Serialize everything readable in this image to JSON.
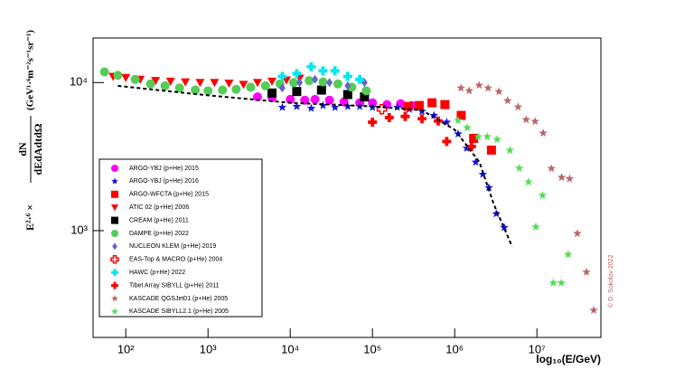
{
  "chart_data": {
    "type": "scatter",
    "xlabel": "log₁₀(E/GeV)",
    "ylabel": {
      "prefix": "E²·⁶ ×",
      "numerator": "dN",
      "denominator": "dEdAdtdΩ",
      "units": "(GeV¹·⁶m⁻²s⁻¹sr⁻¹)"
    },
    "watermark": "© D. Sokolov 2022",
    "log_x": true,
    "log_y": true,
    "xlim": [
      40,
      60000000
    ],
    "ylim": [
      190,
      20000
    ],
    "xticks": [
      {
        "value": 100,
        "label": "10²"
      },
      {
        "value": 1000,
        "label": "10³"
      },
      {
        "value": 10000,
        "label": "10⁴"
      },
      {
        "value": 100000,
        "label": "10⁵"
      },
      {
        "value": 1000000,
        "label": "10⁶"
      },
      {
        "value": 10000000,
        "label": "10⁷"
      }
    ],
    "yticks": [
      {
        "value": 1000,
        "label": "10³"
      },
      {
        "value": 10000,
        "label": "10⁴"
      }
    ],
    "legend": "lower-left",
    "series": [
      {
        "name": "ARGO-YBJ (p+He) 2015",
        "color": "#ff00ff",
        "marker": "circle",
        "x": [
          4000,
          6000,
          10000,
          15000,
          20000,
          30000,
          45000,
          70000,
          100000,
          150000,
          220000,
          300000
        ],
        "values": [
          8000,
          7900,
          7700,
          7600,
          7700,
          7600,
          7400,
          7300,
          7300,
          7100,
          7200,
          7000
        ]
      },
      {
        "name": "ARGO-YBJ (p+He) 2016",
        "color": "#1010e0",
        "marker": "star",
        "x": [
          8000,
          12000,
          18000,
          25000,
          35000,
          50000,
          70000,
          100000,
          140000,
          200000,
          280000,
          400000,
          560000,
          800000,
          1100000,
          1400000,
          1800000,
          2200000,
          2600000,
          3200000,
          4000000
        ],
        "values": [
          6800,
          6900,
          6700,
          7000,
          6800,
          6900,
          6900,
          6800,
          6700,
          6800,
          6600,
          6400,
          6000,
          5400,
          4500,
          3600,
          2900,
          2400,
          1950,
          1300,
          1050
        ]
      },
      {
        "name": "ARGO-WFCTA (p+He) 2015",
        "color": "#ff0000",
        "marker": "square",
        "x": [
          270000,
          370000,
          530000,
          760000,
          1200000,
          1700000,
          2800000
        ],
        "values": [
          6900,
          7000,
          7300,
          7100,
          6000,
          4200,
          3500
        ]
      },
      {
        "name": "ATIC 02 (p+He) 2006",
        "color": "#ff0000",
        "marker": "triangle-down",
        "x": [
          70,
          100,
          150,
          230,
          350,
          530,
          800,
          1200,
          1800,
          2700,
          4000,
          6000,
          9000,
          13000
        ],
        "values": [
          11000,
          10800,
          10500,
          10300,
          10200,
          10100,
          10000,
          10000,
          9900,
          9700,
          10000,
          10200,
          10400,
          10700
        ]
      },
      {
        "name": "CREAM (p+He) 2011",
        "color": "#000000",
        "marker": "square",
        "x": [
          6000,
          12000,
          24000,
          50000,
          80000
        ],
        "values": [
          8500,
          8700,
          8900,
          8300,
          8000
        ]
      },
      {
        "name": "DAMPE (p+He) 2022",
        "color": "#55cc55",
        "marker": "circle",
        "x": [
          55,
          80,
          130,
          200,
          300,
          450,
          700,
          1000,
          1500,
          2200,
          3300,
          5000,
          7500,
          11000,
          17000,
          25000,
          38000,
          56000,
          84000
        ],
        "values": [
          11800,
          11200,
          10500,
          9800,
          9500,
          9200,
          8900,
          8800,
          8900,
          9000,
          9300,
          9500,
          9800,
          10000,
          10300,
          10100,
          9800,
          9300,
          8800
        ]
      },
      {
        "name": "NUCLEON KLEM (p+He) 2019",
        "color": "#6464c8",
        "marker": "diamond",
        "x": [
          8000,
          13000,
          20000,
          30000,
          50000,
          80000
        ],
        "values": [
          9200,
          10000,
          10500,
          10000,
          9500,
          10000
        ]
      },
      {
        "name": "EAS-Top & MACRO (p+He) 2004",
        "color": "#ff0000",
        "marker": "cross-open",
        "x": [
          130000
        ],
        "values": [
          6600
        ]
      },
      {
        "name": "HAWC (p+He) 2022",
        "color": "#00e8f0",
        "marker": "plus",
        "x": [
          8000,
          12000,
          18000,
          25000,
          35000,
          50000,
          70000
        ],
        "values": [
          11000,
          11500,
          12800,
          12000,
          12000,
          11000,
          10500
        ]
      },
      {
        "name": "Tibet Array SIBYLL (p+He) 2011",
        "color": "#ff0000",
        "marker": "plus",
        "x": [
          100000,
          160000,
          250000,
          400000,
          630000,
          800000,
          1600000
        ],
        "values": [
          5400,
          5800,
          5900,
          5700,
          5500,
          4000,
          3700
        ]
      },
      {
        "name": "KASCADE QGSJet01 (p+He) 2005",
        "color": "#b86868",
        "marker": "star",
        "x": [
          1190000,
          1500000,
          1980000,
          2550000,
          3450000,
          4400000,
          5900000,
          7400000,
          9500000,
          11900000,
          15000000,
          20000000,
          25000000,
          31000000,
          40000000,
          49000000
        ],
        "values": [
          9190,
          8810,
          9590,
          9190,
          8690,
          7550,
          6840,
          5620,
          5470,
          4560,
          2630,
          2290,
          2240,
          957,
          525,
          290
        ]
      },
      {
        "name": "KASCADE SIBYLL2.1 (p+He) 2005",
        "color": "#55dd55",
        "marker": "star",
        "x": [
          1100000,
          1420000,
          1930000,
          2490000,
          3280000,
          4700000,
          6100000,
          7900000,
          9700000,
          11700000,
          15800000,
          19800000,
          24000000
        ],
        "values": [
          5550,
          4960,
          4310,
          4310,
          4130,
          3490,
          2640,
          2130,
          1060,
          1730,
          444,
          444,
          690
        ]
      },
      {
        "color": "#000000",
        "line": "dashed",
        "x": [
          80,
          1000,
          10000,
          100000,
          400000,
          1000000,
          2000000,
          3000000,
          5000000
        ],
        "values": [
          9500,
          8200,
          7300,
          6900,
          6500,
          4800,
          2900,
          1500,
          780
        ]
      }
    ]
  }
}
